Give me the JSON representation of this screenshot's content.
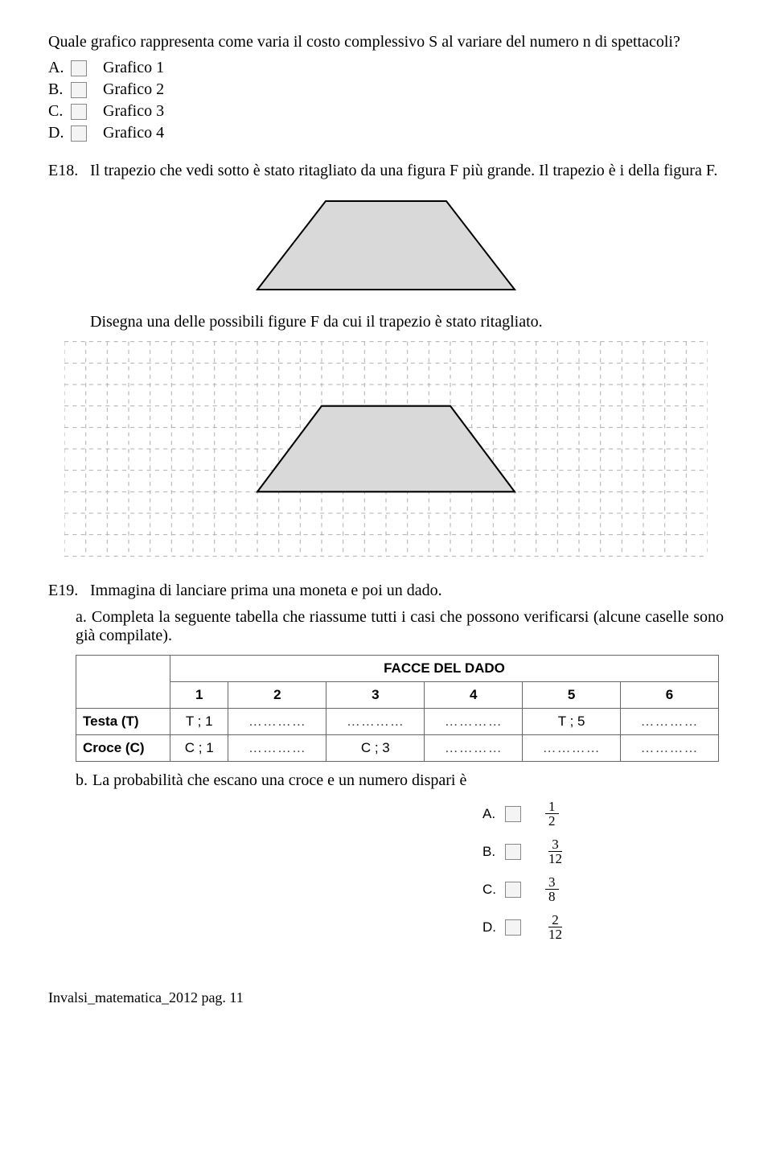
{
  "q_top": {
    "text": "Quale grafico rappresenta come varia il costo complessivo S al variare del numero n di spettacoli?",
    "options": [
      {
        "letter": "A.",
        "label": "Grafico 1"
      },
      {
        "letter": "B.",
        "label": "Grafico 2"
      },
      {
        "letter": "C.",
        "label": "Grafico 3"
      },
      {
        "letter": "D.",
        "label": "Grafico 4"
      }
    ]
  },
  "q18": {
    "number": "E18.",
    "text": "Il trapezio che vedi sotto è stato ritagliato da una figura F più grande. Il trapezio è i della figura F.",
    "instruction": "Disegna una delle possibili figure F da cui il trapezio è stato ritagliato.",
    "trap_fill": "#d9d9d9",
    "trap_stroke": "#000000",
    "grid_stroke": "#b0b0b0",
    "grid_cols": 30,
    "grid_rows": 10,
    "grid_cell": 26
  },
  "q19": {
    "number": "E19.",
    "text": "Immagina di lanciare prima una moneta e poi un dado.",
    "part_a_letter": "a.",
    "part_a_text": "Completa la seguente tabella che riassume tutti i casi che possono verificarsi (alcune caselle sono già compilate).",
    "table": {
      "header_title": "FACCE DEL DADO",
      "cols": [
        "1",
        "2",
        "3",
        "4",
        "5",
        "6"
      ],
      "rows": [
        {
          "hdr": "Testa (T)",
          "cells": [
            "T ; 1",
            "…………",
            "…………",
            "…………",
            "T ; 5",
            "…………"
          ]
        },
        {
          "hdr": "Croce (C)",
          "cells": [
            "C ; 1",
            "…………",
            "C ; 3",
            "…………",
            "…………",
            "…………"
          ]
        }
      ]
    },
    "part_b_letter": "b.",
    "part_b_text": "La probabilità che escano una croce e un numero dispari è",
    "prob_options": [
      {
        "letter": "A.",
        "num": "1",
        "den": "2"
      },
      {
        "letter": "B.",
        "num": "3",
        "den": "12"
      },
      {
        "letter": "C.",
        "num": "3",
        "den": "8"
      },
      {
        "letter": "D.",
        "num": "2",
        "den": "12"
      }
    ]
  },
  "footer": "Invalsi_matematica_2012 pag. 11"
}
